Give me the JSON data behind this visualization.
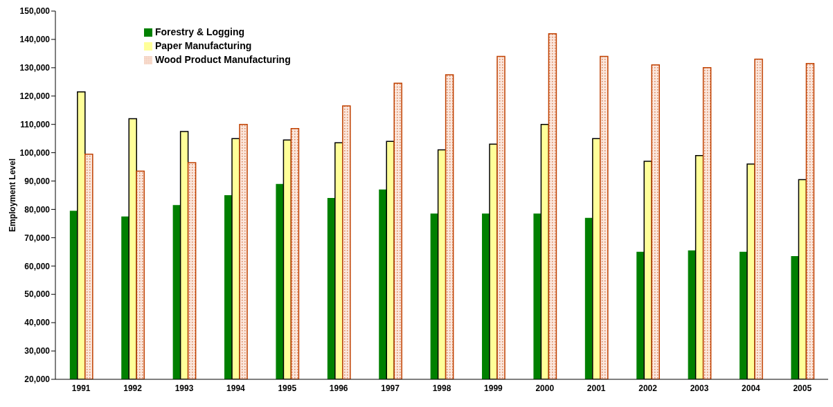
{
  "chart_data": {
    "type": "bar",
    "ylabel": "Employment Level",
    "categories": [
      "1991",
      "1992",
      "1993",
      "1994",
      "1995",
      "1996",
      "1997",
      "1998",
      "1999",
      "2000",
      "2001",
      "2002",
      "2003",
      "2004",
      "2005"
    ],
    "series": [
      {
        "name": "Forestry & Logging",
        "color": "#008000",
        "values": [
          79500,
          77500,
          81500,
          85000,
          89000,
          84000,
          87000,
          78500,
          78500,
          78500,
          77000,
          65000,
          65500,
          65000,
          63500
        ]
      },
      {
        "name": "Paper Manufacturing",
        "color": "#ffff99",
        "values": [
          121500,
          112000,
          107500,
          105000,
          104500,
          103500,
          104000,
          101000,
          103000,
          110000,
          105000,
          97000,
          99000,
          96000,
          90500
        ]
      },
      {
        "name": "Wood Product Manufacturing",
        "color": "#c04000",
        "values": [
          99500,
          93500,
          96500,
          110000,
          108500,
          116500,
          124500,
          127500,
          134000,
          142000,
          134000,
          131000,
          130000,
          133000,
          131500
        ]
      }
    ],
    "ylim": [
      20000,
      150000
    ],
    "yticks": [
      {
        "value": 20000,
        "label": "20,000"
      },
      {
        "value": 30000,
        "label": "30,000"
      },
      {
        "value": 40000,
        "label": "40,000"
      },
      {
        "value": 50000,
        "label": "50,000"
      },
      {
        "value": 60000,
        "label": "60,000"
      },
      {
        "value": 70000,
        "label": "70,000"
      },
      {
        "value": 80000,
        "label": "80,000"
      },
      {
        "value": 90000,
        "label": "90,000"
      },
      {
        "value": 100000,
        "label": "100,000"
      },
      {
        "value": 110000,
        "label": "110,000"
      },
      {
        "value": 120000,
        "label": "120,000"
      },
      {
        "value": 130000,
        "label": "130,000"
      },
      {
        "value": 140000,
        "label": "140,000"
      },
      {
        "value": 150000,
        "label": "150,000"
      }
    ],
    "grid": false,
    "legend": "top left"
  }
}
